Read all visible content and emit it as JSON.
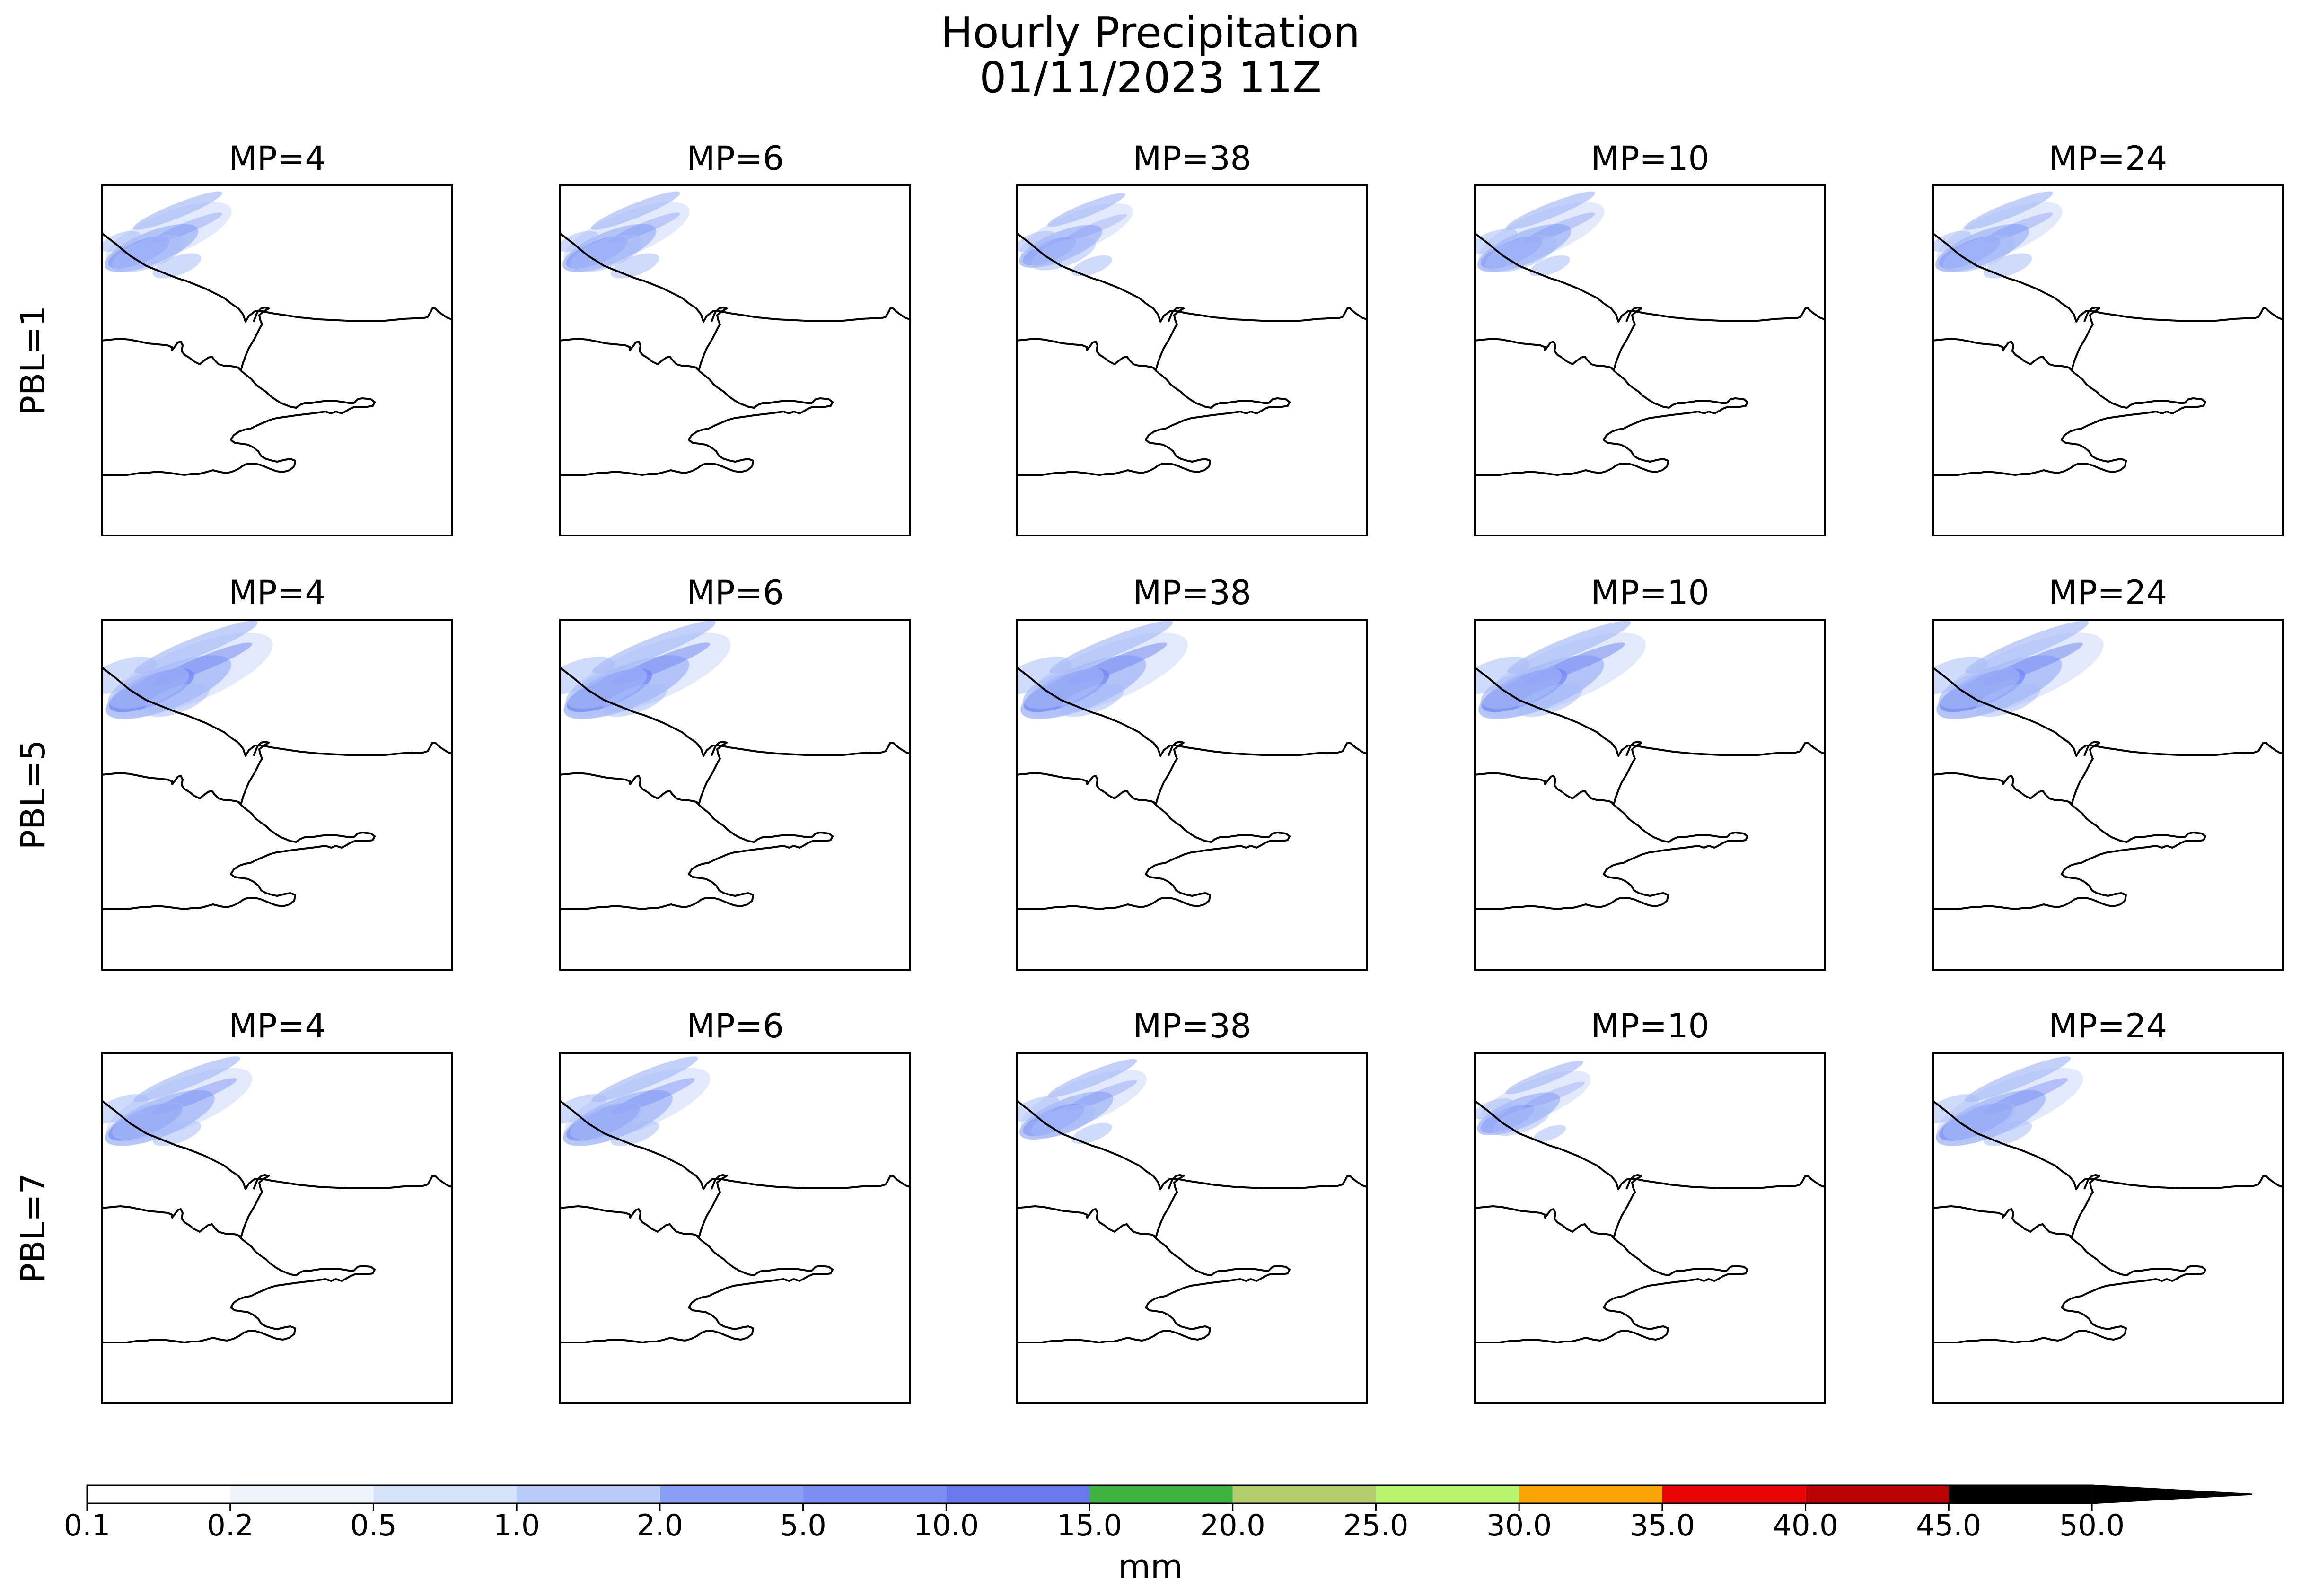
{
  "title": "Hourly Precipitation",
  "subtitle": "01/11/2023 11Z",
  "rows": [
    {
      "label": "PBL=1",
      "panels": [
        {
          "title": "MP=4",
          "cover": [
            [
              0.05,
              0.15,
              0.5
            ],
            [
              0.1,
              0.22,
              0.9
            ],
            [
              0.18,
              0.28,
              0.6
            ]
          ],
          "intensity": 0.55
        },
        {
          "title": "MP=6",
          "cover": [
            [
              0.05,
              0.15,
              0.5
            ],
            [
              0.12,
              0.22,
              0.9
            ],
            [
              0.18,
              0.3,
              0.6
            ]
          ],
          "intensity": 0.55
        },
        {
          "title": "MP=38",
          "cover": [
            [
              0.02,
              0.2,
              0.5
            ],
            [
              0.08,
              0.28,
              0.8
            ],
            [
              0.12,
              0.33,
              0.5
            ]
          ],
          "intensity": 0.45
        },
        {
          "title": "MP=10",
          "cover": [
            [
              0.02,
              0.18,
              0.6
            ],
            [
              0.08,
              0.26,
              0.9
            ],
            [
              0.15,
              0.34,
              0.5
            ]
          ],
          "intensity": 0.55
        },
        {
          "title": "MP=24",
          "cover": [
            [
              0.05,
              0.15,
              0.5
            ],
            [
              0.12,
              0.22,
              0.9
            ],
            [
              0.18,
              0.3,
              0.6
            ]
          ],
          "intensity": 0.55
        }
      ]
    },
    {
      "label": "PBL=5",
      "panels": [
        {
          "title": "MP=4",
          "cover": [
            [
              0.0,
              0.05,
              0.9
            ],
            [
              0.05,
              0.15,
              1.0
            ],
            [
              0.1,
              0.28,
              0.8
            ]
          ],
          "intensity": 0.85
        },
        {
          "title": "MP=6",
          "cover": [
            [
              0.0,
              0.05,
              0.9
            ],
            [
              0.05,
              0.18,
              1.0
            ],
            [
              0.1,
              0.3,
              0.8
            ]
          ],
          "intensity": 0.85
        },
        {
          "title": "MP=38",
          "cover": [
            [
              0.0,
              0.1,
              0.9
            ],
            [
              0.05,
              0.2,
              1.0
            ],
            [
              0.1,
              0.3,
              0.8
            ]
          ],
          "intensity": 0.85
        },
        {
          "title": "MP=10",
          "cover": [
            [
              0.0,
              0.1,
              0.9
            ],
            [
              0.05,
              0.22,
              1.0
            ],
            [
              0.12,
              0.33,
              0.8
            ]
          ],
          "intensity": 0.85
        },
        {
          "title": "MP=24",
          "cover": [
            [
              0.0,
              0.05,
              0.9
            ],
            [
              0.05,
              0.18,
              1.0
            ],
            [
              0.1,
              0.3,
              0.8
            ]
          ],
          "intensity": 0.85
        }
      ]
    },
    {
      "label": "PBL=7",
      "panels": [
        {
          "title": "MP=4",
          "cover": [
            [
              0.0,
              0.05,
              0.7
            ],
            [
              0.04,
              0.15,
              0.9
            ],
            [
              0.1,
              0.28,
              0.6
            ]
          ],
          "intensity": 0.7
        },
        {
          "title": "MP=6",
          "cover": [
            [
              0.0,
              0.05,
              0.7
            ],
            [
              0.04,
              0.15,
              0.9
            ],
            [
              0.1,
              0.28,
              0.6
            ]
          ],
          "intensity": 0.7
        },
        {
          "title": "MP=38",
          "cover": [
            [
              0.0,
              0.08,
              0.6
            ],
            [
              0.05,
              0.18,
              0.8
            ],
            [
              0.1,
              0.3,
              0.5
            ]
          ],
          "intensity": 0.55
        },
        {
          "title": "MP=10",
          "cover": [
            [
              0.0,
              0.1,
              0.5
            ],
            [
              0.05,
              0.18,
              0.7
            ],
            [
              0.1,
              0.28,
              0.4
            ]
          ],
          "intensity": 0.45
        },
        {
          "title": "MP=24",
          "cover": [
            [
              0.0,
              0.05,
              0.7
            ],
            [
              0.04,
              0.15,
              0.9
            ],
            [
              0.1,
              0.28,
              0.6
            ]
          ],
          "intensity": 0.7
        }
      ]
    }
  ],
  "colorbar": {
    "label": "mm",
    "ticks": [
      "0.1",
      "0.2",
      "0.5",
      "1.0",
      "2.0",
      "5.0",
      "10.0",
      "15.0",
      "20.0",
      "25.0",
      "30.0",
      "35.0",
      "40.0",
      "45.0",
      "50.0"
    ],
    "colors": [
      "#ffffff",
      "#eef5fd",
      "#d6e3fb",
      "#b8cbf8",
      "#899ff6",
      "#7a8ef4",
      "#6a78ef",
      "#3fb33f",
      "#b2cc6e",
      "#b6f56c",
      "#fba406",
      "#e70404",
      "#b90404",
      "#000000"
    ],
    "extend_color": "#000000"
  },
  "precip_colors": {
    "light": "#dfe7fb",
    "mid": "#a9bcf7",
    "heavy": "#7185f2"
  }
}
